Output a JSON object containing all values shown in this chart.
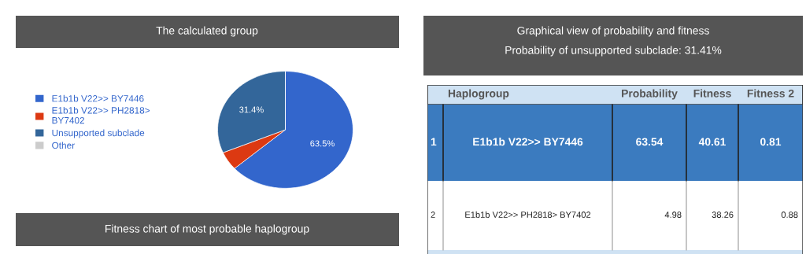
{
  "chart_data": [
    {
      "type": "pie",
      "title": "The calculated group",
      "categories": [
        "E1b1b V22>> BY7446",
        "E1b1b V22>> PH2818> BY7402",
        "Unsupported subclade",
        "Other"
      ],
      "values": [
        63.5,
        5.1,
        31.4,
        0
      ],
      "colors": [
        "#3366cc",
        "#dc3912",
        "#33669a",
        "#cccccc"
      ],
      "value_labels": [
        "63.5%",
        null,
        "31.4%",
        null
      ],
      "legend": "left",
      "annotations": [
        "Fitness chart of most probable haplogroup"
      ]
    },
    {
      "type": "other",
      "title": "Graphical view of probability and fitness",
      "subtitle": "Probability of unsupported subclade: 31.41%",
      "categories": [
        null,
        "Haplogroup",
        "Probability",
        "Fitness",
        "Fitness 2"
      ],
      "annotations": [
        "1",
        "E1b1b V22>> BY7446",
        "63.54",
        "40.61",
        "0.81",
        "2",
        "E1b1b V22>> PH2818> BY7402",
        "4.98",
        "38.26",
        "0.88"
      ]
    }
  ]
}
